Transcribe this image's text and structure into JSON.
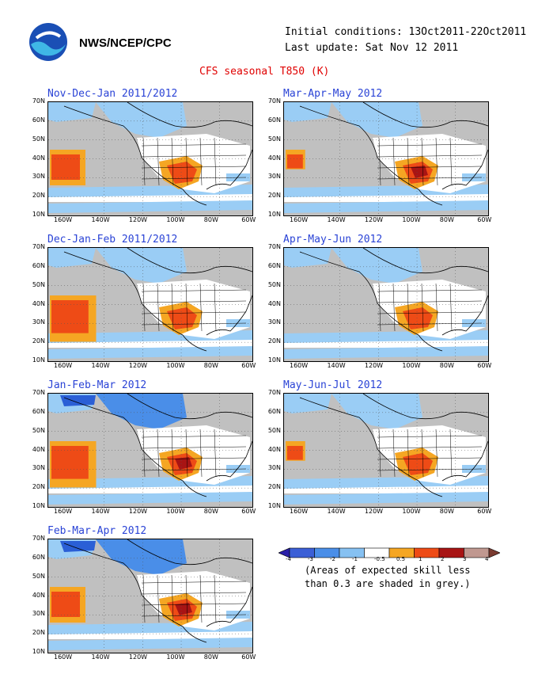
{
  "header": {
    "org": "NWS/NCEP/CPC",
    "initial_conditions": "Initial conditions: 13Oct2011-22Oct2011",
    "last_update": "Last update: Sat Nov 12 2011",
    "title": "CFS seasonal T850 (K)"
  },
  "axes": {
    "lat_labels": [
      "70N",
      "60N",
      "50N",
      "40N",
      "30N",
      "20N",
      "10N"
    ],
    "lon_labels": [
      "160W",
      "140W",
      "120W",
      "100W",
      "80W",
      "60W"
    ]
  },
  "panels": [
    {
      "title": "Nov-Dec-Jan 2011/2012",
      "warm": "sw",
      "pacific_warm": "mid",
      "cool_north": "moderate"
    },
    {
      "title": "Mar-Apr-May 2012",
      "warm": "sw_strong",
      "pacific_warm": "small",
      "cool_north": "light"
    },
    {
      "title": "Dec-Jan-Feb 2011/2012",
      "warm": "sw",
      "pacific_warm": "large",
      "cool_north": "moderate"
    },
    {
      "title": "Apr-May-Jun 2012",
      "warm": "sw",
      "pacific_warm": "none",
      "cool_north": "light"
    },
    {
      "title": "Jan-Feb-Mar 2012",
      "warm": "sw_strong",
      "pacific_warm": "large",
      "cool_north": "strong"
    },
    {
      "title": "May-Jun-Jul 2012",
      "warm": "sw",
      "pacific_warm": "small",
      "cool_north": "light"
    },
    {
      "title": "Feb-Mar-Apr 2012",
      "warm": "sw_strong",
      "pacific_warm": "mid",
      "cool_north": "strong"
    }
  ],
  "colorbar": {
    "tick_labels": [
      "-4",
      "-3",
      "-2",
      "-1",
      "-0.5",
      "0.5",
      "1",
      "2",
      "3",
      "4"
    ],
    "colors": [
      "#2a1fa8",
      "#3b5fd6",
      "#4a8ee8",
      "#86c1f2",
      "#ffffff",
      "#f5a623",
      "#ee4b16",
      "#a81414",
      "#c09890",
      "#7a3a30"
    ],
    "note_line1": "(Areas of expected skill less",
    "note_line2": "than 0.3 are shaded in grey.)"
  },
  "colors": {
    "grey": "#c0c0c0",
    "light_blue": "#9acdf5",
    "mid_blue": "#4a8ee8",
    "dark_blue": "#2a5fd6",
    "orange": "#f5a623",
    "red_orange": "#ee4b16",
    "dark_red": "#a81414"
  }
}
